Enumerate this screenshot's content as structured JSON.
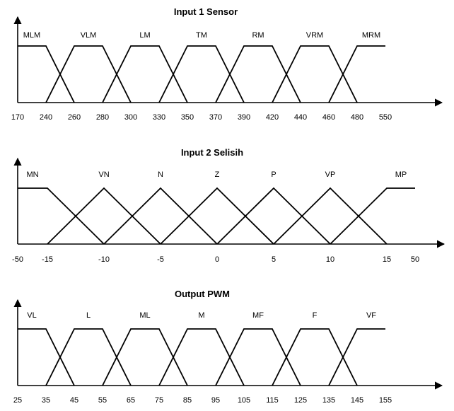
{
  "charts": [
    {
      "title": "Input 1 Sensor",
      "ticks": [
        "170",
        "240",
        "260",
        "280",
        "300",
        "330",
        "350",
        "370",
        "390",
        "420",
        "440",
        "460",
        "480",
        "550"
      ],
      "sets": [
        {
          "label": "MLM",
          "shape": "left",
          "points": [
            0,
            1,
            2
          ]
        },
        {
          "label": "VLM",
          "shape": "trap",
          "points": [
            1,
            2,
            3,
            4
          ]
        },
        {
          "label": "LM",
          "shape": "trap",
          "points": [
            3,
            4,
            5,
            6
          ]
        },
        {
          "label": "TM",
          "shape": "trap",
          "points": [
            5,
            6,
            7,
            8
          ]
        },
        {
          "label": "RM",
          "shape": "trap",
          "points": [
            7,
            8,
            9,
            10
          ]
        },
        {
          "label": "VRM",
          "shape": "trap",
          "points": [
            9,
            10,
            11,
            12
          ]
        },
        {
          "label": "MRM",
          "shape": "right",
          "points": [
            11,
            12,
            13
          ]
        }
      ]
    },
    {
      "title": "Input 2 Selisih",
      "ticks": [
        "-50",
        "-15",
        "-10",
        "-5",
        "0",
        "5",
        "10",
        "15",
        "50"
      ],
      "sets": [
        {
          "label": "MN",
          "shape": "left",
          "points": [
            0,
            1,
            2
          ]
        },
        {
          "label": "VN",
          "shape": "tri",
          "points": [
            1,
            2,
            3
          ]
        },
        {
          "label": "N",
          "shape": "tri",
          "points": [
            2,
            3,
            4
          ]
        },
        {
          "label": "Z",
          "shape": "tri",
          "points": [
            3,
            4,
            5
          ]
        },
        {
          "label": "P",
          "shape": "tri",
          "points": [
            4,
            5,
            6
          ]
        },
        {
          "label": "VP",
          "shape": "tri",
          "points": [
            5,
            6,
            7
          ]
        },
        {
          "label": "MP",
          "shape": "right",
          "points": [
            6,
            7,
            8
          ]
        }
      ]
    },
    {
      "title": "Output PWM",
      "ticks": [
        "25",
        "35",
        "45",
        "55",
        "65",
        "75",
        "85",
        "95",
        "105",
        "115",
        "125",
        "135",
        "145",
        "155"
      ],
      "sets": [
        {
          "label": "VL",
          "shape": "left",
          "points": [
            0,
            1,
            2
          ]
        },
        {
          "label": "L",
          "shape": "trap",
          "points": [
            1,
            2,
            3,
            4
          ]
        },
        {
          "label": "ML",
          "shape": "trap",
          "points": [
            3,
            4,
            5,
            6
          ]
        },
        {
          "label": "M",
          "shape": "trap",
          "points": [
            5,
            6,
            7,
            8
          ]
        },
        {
          "label": "MF",
          "shape": "trap",
          "points": [
            7,
            8,
            9,
            10
          ]
        },
        {
          "label": "F",
          "shape": "trap",
          "points": [
            9,
            10,
            11,
            12
          ]
        },
        {
          "label": "VF",
          "shape": "right",
          "points": [
            11,
            12,
            13
          ]
        }
      ]
    }
  ]
}
